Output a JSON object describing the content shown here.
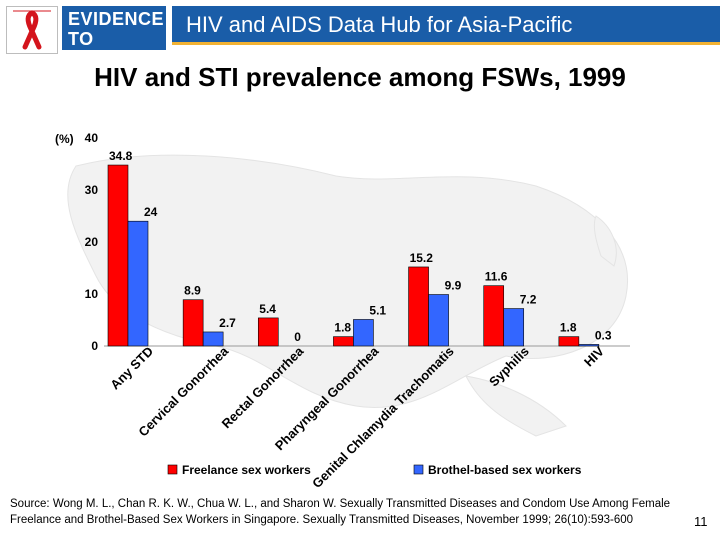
{
  "header": {
    "logo_line1": "EVIDENCE",
    "logo_line2": "TO ACTION",
    "title": "HIV and AIDS Data Hub for Asia-Pacific"
  },
  "slide": {
    "title": "HIV and STI prevalence among FSWs, 1999",
    "source": "Source: Wong M. L., Chan R. K. W., Chua W. L., and Sharon W.  Sexually Transmitted Diseases and Condom Use Among Female Freelance and Brothel-Based Sex Workers in Singapore. Sexually Transmitted Diseases, November 1999; 26(10):593-600",
    "page_number": "11"
  },
  "colors": {
    "brand_blue": "#1a5da8",
    "accent_gold": "#f2b233",
    "series1": "#ff0000",
    "series2": "#3366ff"
  },
  "chart_data": {
    "type": "bar",
    "ylabel": "(%)",
    "ylim": [
      0,
      40
    ],
    "yticks": [
      "0",
      "10",
      "20",
      "30",
      "40"
    ],
    "categories": [
      "Any STD",
      "Cervical Gonorrhea",
      "Rectal Gonorrhea",
      "Pharyngeal Gonorrhea",
      "Genital Chlamydia Trachomatis",
      "Syphilis",
      "HIV"
    ],
    "series": [
      {
        "name": "Freelance sex workers",
        "values": [
          34.8,
          8.9,
          5.4,
          1.8,
          15.2,
          11.6,
          1.8
        ],
        "labels": [
          "34.8",
          "8.9",
          "5.4",
          "1.8",
          "15.2",
          "11.6",
          "1.8"
        ]
      },
      {
        "name": "Brothel-based sex workers",
        "values": [
          24,
          2.7,
          0,
          5.1,
          9.9,
          7.2,
          0.3
        ],
        "labels": [
          "24",
          "2.7",
          "0",
          "5.1",
          "9.9",
          "7.2",
          "0.3"
        ]
      }
    ],
    "legend": "bottom"
  }
}
